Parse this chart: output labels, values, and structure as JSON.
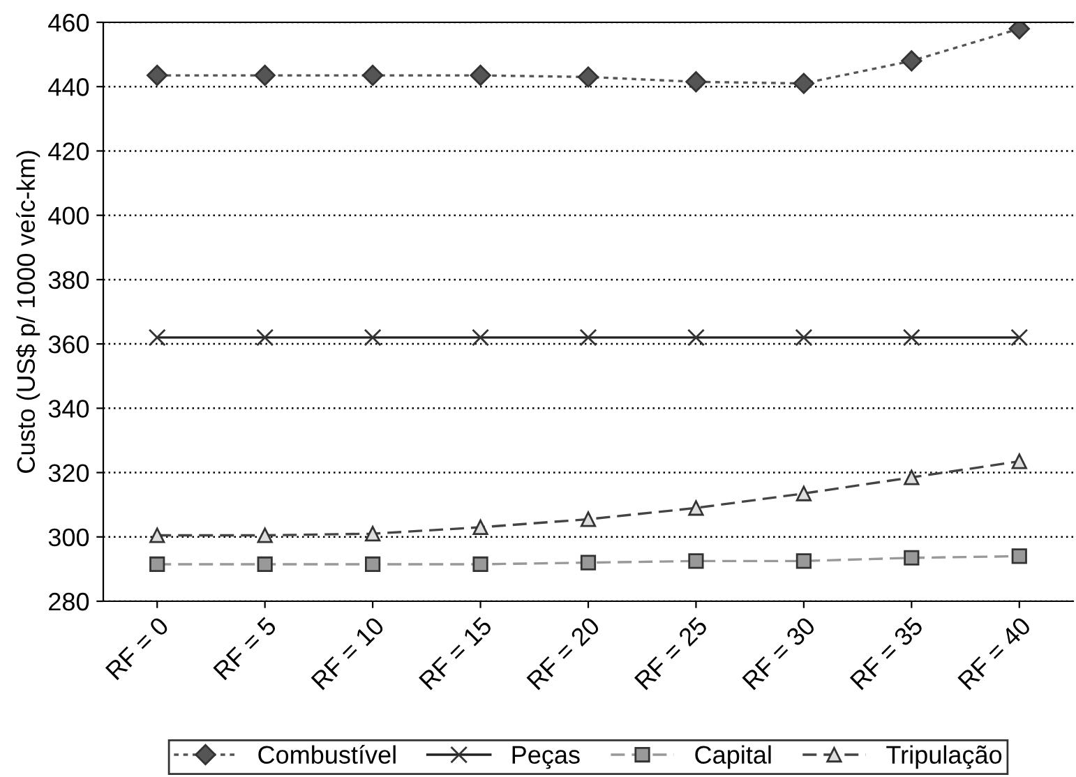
{
  "chart_data": {
    "type": "line",
    "ylabel": "Custo (US$ p/ 1000 veíc-km)",
    "categories": [
      "RF = 0",
      "RF = 5",
      "RF = 10",
      "RF = 15",
      "RF = 20",
      "RF = 25",
      "RF = 30",
      "RF = 35",
      "RF = 40"
    ],
    "series": [
      {
        "name": "Combustível",
        "color": "#555555",
        "marker": "diamond",
        "line_style": "dotted",
        "values": [
          443.5,
          443.5,
          443.5,
          443.5,
          443,
          441.5,
          441,
          448,
          458
        ]
      },
      {
        "name": "Peças",
        "color": "#222222",
        "marker": "cross",
        "line_style": "solid",
        "values": [
          362,
          362,
          362,
          362,
          362,
          362,
          362,
          362,
          362
        ]
      },
      {
        "name": "Capital",
        "color": "#999999",
        "marker": "square",
        "line_style": "dashed",
        "values": [
          291.5,
          291.5,
          291.5,
          291.5,
          292,
          292.5,
          292.5,
          293.5,
          294
        ]
      },
      {
        "name": "Tripulação",
        "color": "#444444",
        "marker": "triangle",
        "line_style": "dashed",
        "values": [
          300.5,
          300.5,
          301,
          303,
          305.5,
          309,
          313.5,
          318.5,
          323.5
        ]
      }
    ],
    "ylim": [
      280,
      460
    ],
    "yticks": [
      280,
      300,
      320,
      340,
      360,
      380,
      400,
      420,
      440,
      460
    ],
    "grid": "y",
    "legend": "bottom"
  }
}
